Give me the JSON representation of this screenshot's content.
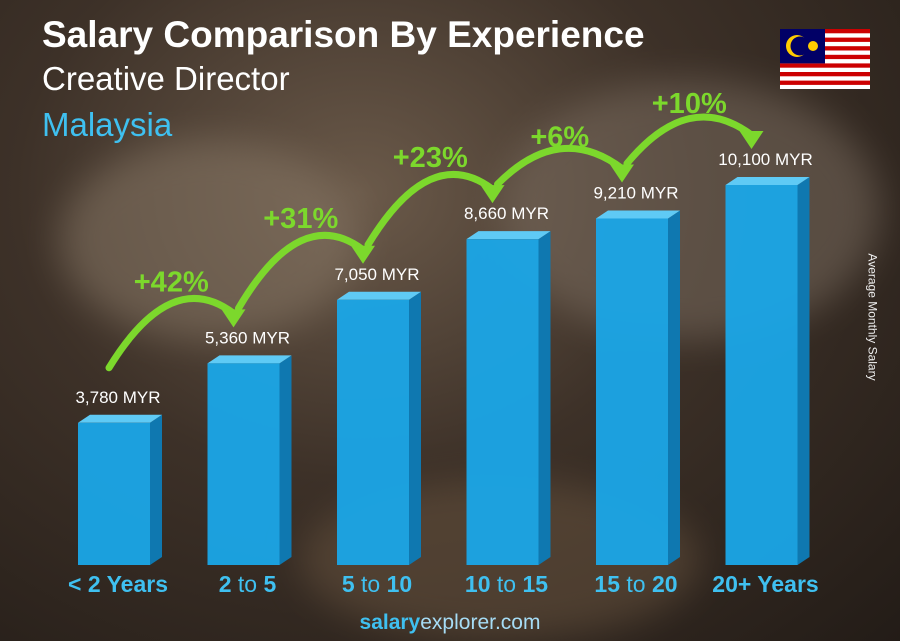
{
  "header": {
    "title": "Salary Comparison By Experience",
    "subtitle": "Creative Director",
    "country": "Malaysia"
  },
  "footer": {
    "brand_bold": "salary",
    "brand_rest": "explorer.com"
  },
  "colors": {
    "bar_front": "#1aa7e8",
    "bar_side": "#0f78b0",
    "bar_top": "#5fcaf5",
    "arrow": "#7cd82c",
    "category_text": "#3fc0f0"
  },
  "chart_data": {
    "type": "bar",
    "title": "Salary Comparison By Experience",
    "ylabel": "Average Monthly Salary",
    "categories": [
      "< 2 Years",
      "2 to 5",
      "5 to 10",
      "10 to 15",
      "15 to 20",
      "20+ Years"
    ],
    "values": [
      3780,
      5360,
      7050,
      8660,
      9210,
      10100
    ],
    "value_labels": [
      "3,780 MYR",
      "5,360 MYR",
      "7,050 MYR",
      "8,660 MYR",
      "9,210 MYR",
      "10,100 MYR"
    ],
    "unit": "MYR",
    "changes": [
      "+42%",
      "+31%",
      "+23%",
      "+6%",
      "+10%"
    ],
    "ylim": [
      0,
      10100
    ]
  }
}
